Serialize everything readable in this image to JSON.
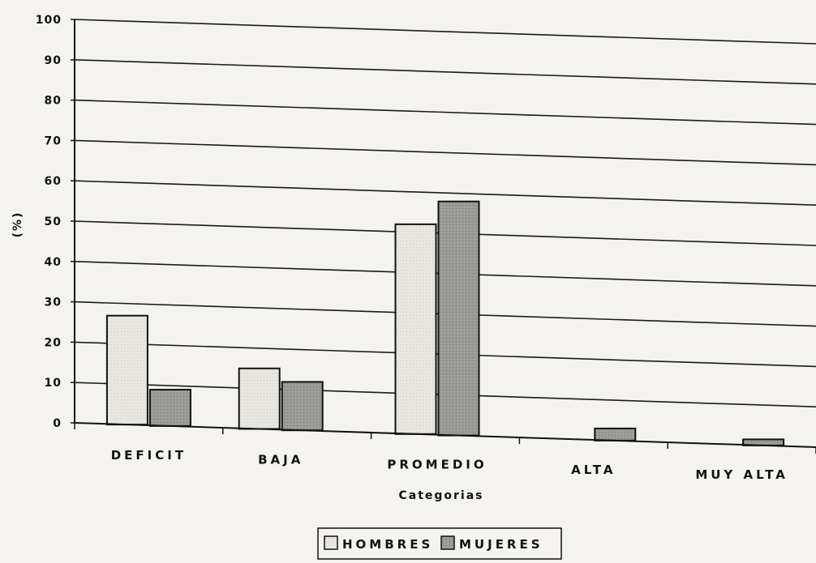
{
  "chart_data": {
    "type": "bar",
    "title": "",
    "xlabel": "Categorias",
    "ylabel": "(%)",
    "ylim": [
      0,
      100
    ],
    "yticks": [
      "0",
      "10",
      "20",
      "30",
      "40",
      "50",
      "60",
      "70",
      "80",
      "90",
      "100"
    ],
    "grid": true,
    "legend_position": "bottom",
    "categories": [
      "DEFICIT",
      "BAJA",
      "PROMEDIO",
      "ALTA",
      "MUY ALTA"
    ],
    "series": [
      {
        "name": "HOMBRES",
        "values": [
          27,
          15,
          52,
          0,
          0
        ],
        "color": "#e8e6e0"
      },
      {
        "name": "MUJERES",
        "values": [
          9,
          12,
          58,
          3,
          1.5
        ],
        "color": "#9a9a96"
      }
    ]
  }
}
